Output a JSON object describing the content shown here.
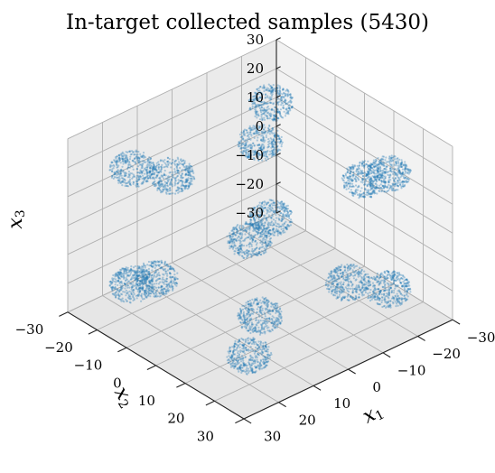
{
  "chart_data": {
    "type": "scatter",
    "projection": "3d",
    "title": "In-target collected samples (5430)",
    "xlabel": "x",
    "xlabel_sub": "1",
    "ylabel": "x",
    "ylabel_sub": "2",
    "zlabel": "x",
    "zlabel_sub": "3",
    "xlim": [
      -30,
      30
    ],
    "ylim": [
      -30,
      30
    ],
    "zlim": [
      -30,
      30
    ],
    "x_ticks": [
      "30",
      "20",
      "10",
      "0",
      "−10",
      "−20",
      "−30"
    ],
    "y_ticks": [
      "−30",
      "−20",
      "−10",
      "0",
      "10",
      "20",
      "30"
    ],
    "z_ticks": [
      "30",
      "20",
      "10",
      "0",
      "−10",
      "−20",
      "−30"
    ],
    "grid": true,
    "point_color": "#1f77b4",
    "series": [
      {
        "clusters": [
          {
            "center": [
              0,
              0,
              30
            ],
            "radius": 5
          },
          {
            "center": [
              0,
              0,
              -30
            ],
            "radius": 5
          },
          {
            "center": [
              0,
              30,
              0
            ],
            "radius": 5
          },
          {
            "center": [
              0,
              -30,
              0
            ],
            "radius": 5
          },
          {
            "center": [
              30,
              0,
              0
            ],
            "radius": 5
          },
          {
            "center": [
              -30,
              0,
              0
            ],
            "radius": 5
          },
          {
            "center": [
              20,
              20,
              20
            ],
            "radius": 5
          },
          {
            "center": [
              -20,
              20,
              20
            ],
            "radius": 5
          },
          {
            "center": [
              20,
              -20,
              20
            ],
            "radius": 5
          },
          {
            "center": [
              20,
              20,
              -20
            ],
            "radius": 5
          },
          {
            "center": [
              -20,
              -20,
              20
            ],
            "radius": 5
          },
          {
            "center": [
              -20,
              20,
              -20
            ],
            "radius": 5
          },
          {
            "center": [
              20,
              -20,
              -20
            ],
            "radius": 5
          },
          {
            "center": [
              -20,
              -20,
              -20
            ],
            "radius": 5
          }
        ],
        "total_points": 5430
      }
    ]
  }
}
